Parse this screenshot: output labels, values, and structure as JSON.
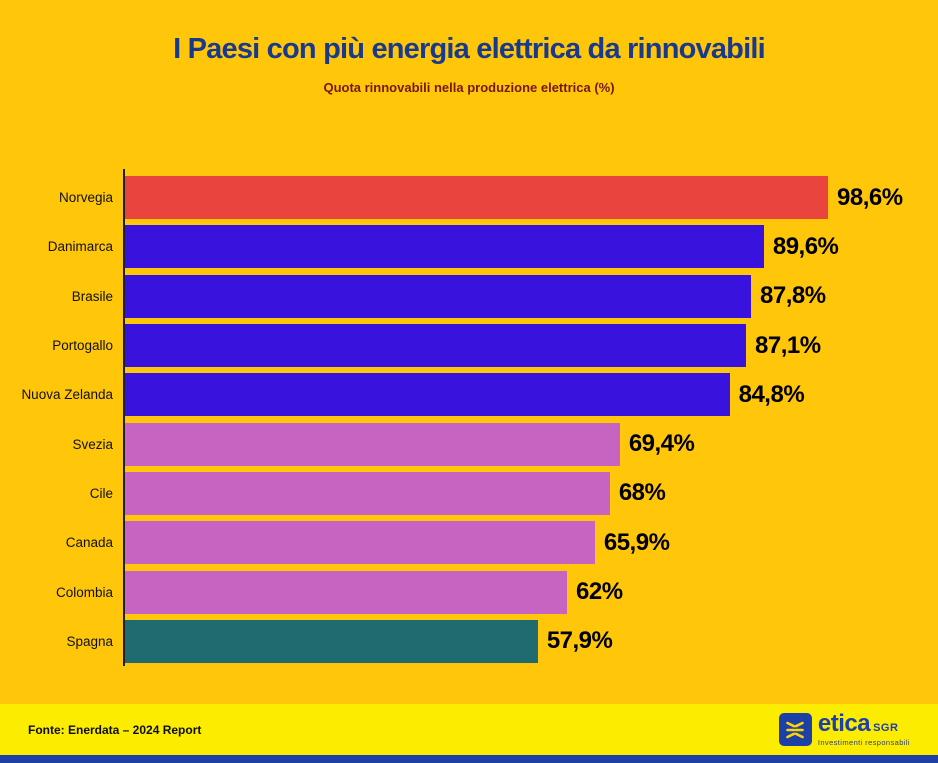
{
  "page": {
    "background": "#ffc60a",
    "title": "I Paesi con più energia elettrica da rinnovabili",
    "title_color": "#193a8c",
    "subtitle": "Quota rinnovabili nella produzione elettrica (%)",
    "subtitle_color": "#77160a"
  },
  "chart_data": {
    "type": "bar",
    "orientation": "horizontal",
    "title": "I Paesi con più energia elettrica da rinnovabili",
    "subtitle": "Quota rinnovabili nella produzione elettrica (%)",
    "categories": [
      "Norvegia",
      "Danimarca",
      "Brasile",
      "Portogallo",
      "Nuova Zelanda",
      "Svezia",
      "Cile",
      "Canada",
      "Colombia",
      "Spagna"
    ],
    "values": [
      98.6,
      89.6,
      87.8,
      87.1,
      84.8,
      69.4,
      68,
      65.9,
      62,
      57.9
    ],
    "value_labels": [
      "98,6%",
      "89,6%",
      "87,8%",
      "87,1%",
      "84,8%",
      "69,4%",
      "68%",
      "65,9%",
      "62%",
      "57,9%"
    ],
    "bar_colors": [
      "#ea453d",
      "#3913dd",
      "#3913dd",
      "#3913dd",
      "#3913dd",
      "#c763c1",
      "#c763c1",
      "#c763c1",
      "#c763c1",
      "#206b70"
    ],
    "xlabel": "",
    "ylabel": "",
    "xlim": [
      0,
      100
    ],
    "grid": false,
    "legend": false,
    "axis_line_color": "#1f1f1f"
  },
  "footer": {
    "background": "#fcec00",
    "source": "Fonte: Enerdata – 2024 Report",
    "logo": {
      "wordmark": "etica",
      "suffix": "SGR",
      "tagline": "Investimenti responsabili",
      "brand_blue": "#1c3fa8",
      "mark_yellow": "#ffd400"
    }
  },
  "bottom_strip_color": "#1c3fa8"
}
